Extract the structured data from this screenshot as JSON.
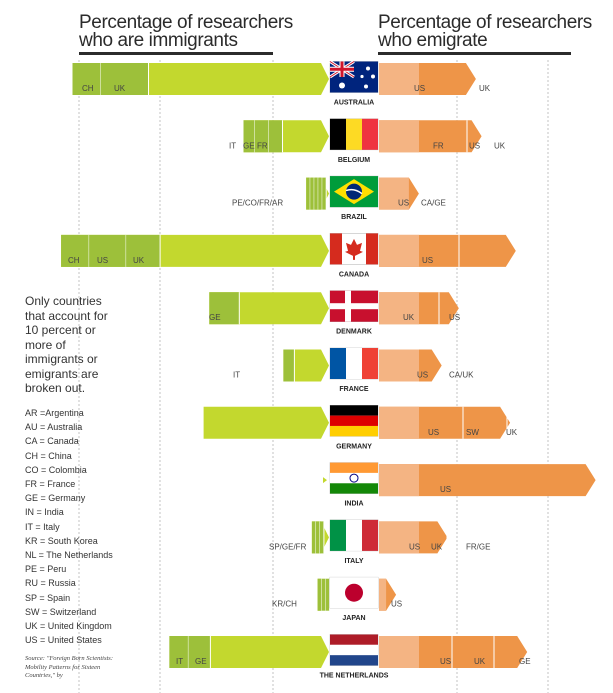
{
  "headers": {
    "left": [
      "Percentage of researchers",
      "who are immigrants"
    ],
    "right": [
      "Percentage of researchers",
      "who emigrate"
    ]
  },
  "note": "Only countries that account for 10 percent or more of immigrants or emigrants are broken out.",
  "legend": [
    "AR =Argentina",
    "AU = Australia",
    "CA = Canada",
    "CH = China",
    "CO = Colombia",
    "FR = France",
    "GE = Germany",
    "IN = India",
    "IT = Italy",
    "KR = South Korea",
    "NL = The Netherlands",
    "PE = Peru",
    "RU = Russia",
    "SP = Spain",
    "SW = Switzerland",
    "UK = United Kingdom",
    "US = United States"
  ],
  "source": "Source: \"Foreign Born Scientists: Mobility Patterns for Sixteen Countries,\" by",
  "colors": {
    "immigrant_bar": "#c3d82e",
    "immigrant_segment": "#9dc03a",
    "emigrant_bar": "#ee9548",
    "emigrant_segment": "#f4b483"
  },
  "chart_data": {
    "type": "bar",
    "categories": [
      "AUSTRALIA",
      "BELGIUM",
      "BRAZIL",
      "CANADA",
      "DENMARK",
      "FRANCE",
      "GERMANY",
      "INDIA",
      "ITALY",
      "JAPAN",
      "THE NETHERLANDS"
    ],
    "immigrants_pct": [
      45,
      15,
      4,
      47,
      21,
      8,
      22,
      0.5,
      3,
      2,
      28
    ],
    "emigrants_pct": [
      17,
      18,
      7,
      24,
      14,
      11,
      23,
      38,
      12,
      3,
      26
    ],
    "immigrant_segments": [
      [
        "CH",
        "UK"
      ],
      [
        "IT",
        "GE",
        "FR"
      ],
      [
        "PE/CO/FR/AR"
      ],
      [
        "CH",
        "US",
        "UK"
      ],
      [
        "GE"
      ],
      [
        "IT"
      ],
      [],
      [],
      [
        "SP/GE/FR"
      ],
      [
        "KR/CH"
      ],
      [
        "IT",
        "GE"
      ]
    ],
    "emigrant_segments": [
      [
        "US",
        "UK"
      ],
      [
        "FR",
        "US",
        "UK"
      ],
      [
        "US",
        "CA/GE"
      ],
      [
        "US"
      ],
      [
        "UK",
        "US"
      ],
      [
        "US",
        "CA/UK"
      ],
      [
        "US",
        "SW",
        "UK"
      ],
      [
        "US"
      ],
      [
        "US",
        "UK",
        "FR/GE"
      ],
      [
        "US"
      ],
      [
        "US",
        "UK",
        "GE"
      ]
    ]
  }
}
